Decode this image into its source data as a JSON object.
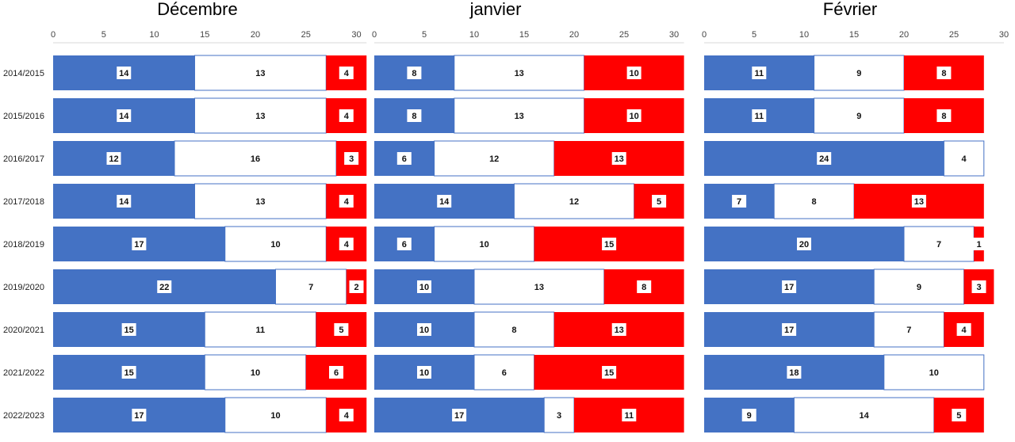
{
  "chart_data": [
    {
      "type": "bar",
      "orientation": "horizontal",
      "stacked": true,
      "title": "Décembre",
      "categories": [
        "2014/2015",
        "2015/2016",
        "2016/2017",
        "2017/2018",
        "2018/2019",
        "2019/2020",
        "2020/2021",
        "2021/2022",
        "2022/2023"
      ],
      "xlim": [
        0,
        31
      ],
      "xticks": [
        0,
        5,
        10,
        15,
        20,
        25,
        30
      ],
      "legend": "none",
      "grid": false,
      "series": [
        {
          "color": "#4472C4",
          "values": [
            14,
            14,
            12,
            14,
            17,
            22,
            15,
            15,
            17
          ]
        },
        {
          "color": "#FFFFFF",
          "values": [
            13,
            13,
            16,
            13,
            10,
            7,
            11,
            10,
            10
          ]
        },
        {
          "color": "#FF0000",
          "values": [
            4,
            4,
            3,
            4,
            4,
            2,
            5,
            6,
            4
          ]
        }
      ]
    },
    {
      "type": "bar",
      "orientation": "horizontal",
      "stacked": true,
      "title": "janvier",
      "categories": [
        "2014/2015",
        "2015/2016",
        "2016/2017",
        "2017/2018",
        "2018/2019",
        "2019/2020",
        "2020/2021",
        "2021/2022",
        "2022/2023"
      ],
      "xlim": [
        0,
        31
      ],
      "xticks": [
        0,
        5,
        10,
        15,
        20,
        25,
        30
      ],
      "legend": "none",
      "grid": false,
      "series": [
        {
          "color": "#4472C4",
          "values": [
            8,
            8,
            6,
            14,
            6,
            10,
            10,
            10,
            17
          ]
        },
        {
          "color": "#FFFFFF",
          "values": [
            13,
            13,
            12,
            12,
            10,
            13,
            8,
            6,
            3
          ]
        },
        {
          "color": "#FF0000",
          "values": [
            10,
            10,
            13,
            5,
            15,
            8,
            13,
            15,
            11
          ]
        }
      ]
    },
    {
      "type": "bar",
      "orientation": "horizontal",
      "stacked": true,
      "title": "Février",
      "categories": [
        "2014/2015",
        "2015/2016",
        "2016/2017",
        "2017/2018",
        "2018/2019",
        "2019/2020",
        "2020/2021",
        "2021/2022",
        "2022/2023"
      ],
      "xlim": [
        0,
        30
      ],
      "xticks": [
        0,
        5,
        10,
        15,
        20,
        25,
        30
      ],
      "legend": "none",
      "grid": false,
      "series": [
        {
          "color": "#4472C4",
          "values": [
            11,
            11,
            24,
            7,
            20,
            17,
            17,
            18,
            9
          ]
        },
        {
          "color": "#FFFFFF",
          "values": [
            9,
            9,
            4,
            8,
            7,
            9,
            7,
            10,
            14
          ]
        },
        {
          "color": "#FF0000",
          "values": [
            8,
            8,
            null,
            13,
            1,
            3,
            4,
            null,
            5
          ]
        }
      ]
    }
  ]
}
